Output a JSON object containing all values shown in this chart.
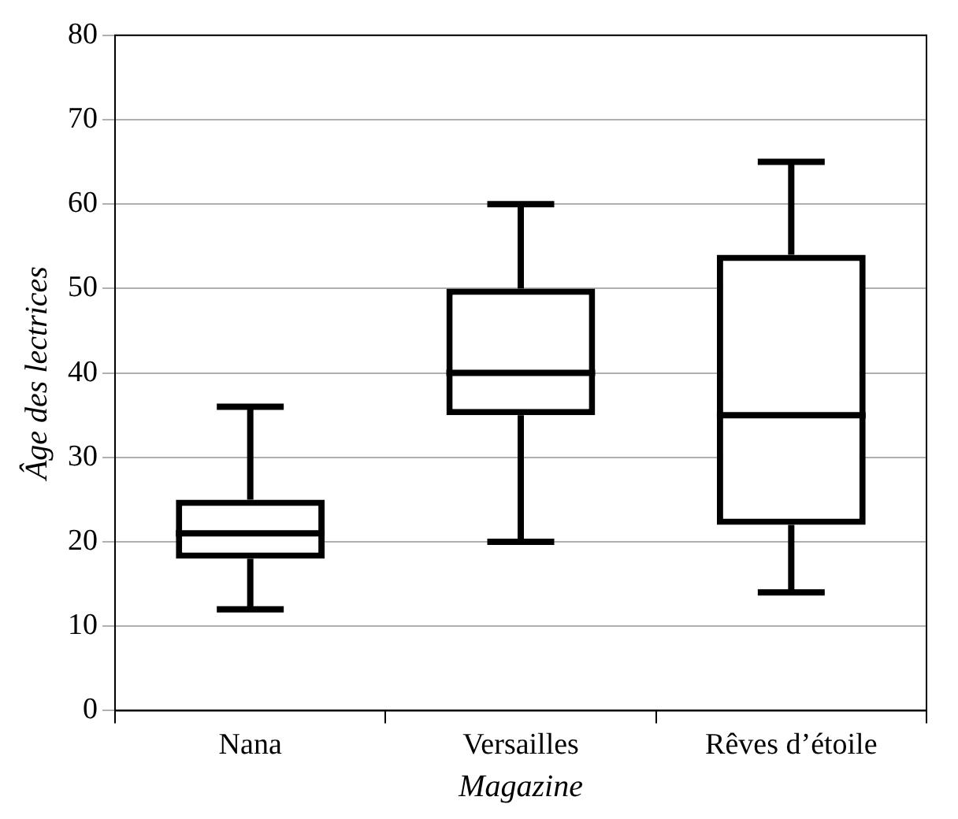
{
  "chart_data": {
    "type": "box",
    "xlabel": "Magazine",
    "ylabel": "Âge des lectrices",
    "categories": [
      "Nana",
      "Versailles",
      "Rêves d’étoile"
    ],
    "boxes": [
      {
        "low": 12,
        "q1": 18,
        "median": 21,
        "q3": 25,
        "high": 36
      },
      {
        "low": 20,
        "q1": 35,
        "median": 40,
        "q3": 50,
        "high": 60
      },
      {
        "low": 14,
        "q1": 22,
        "median": 35,
        "q3": 54,
        "high": 65
      }
    ],
    "color": "#000000",
    "ylim": [
      0,
      80
    ],
    "yticks": [
      0,
      10,
      20,
      30,
      40,
      50,
      60,
      70,
      80
    ],
    "grid": "y"
  }
}
